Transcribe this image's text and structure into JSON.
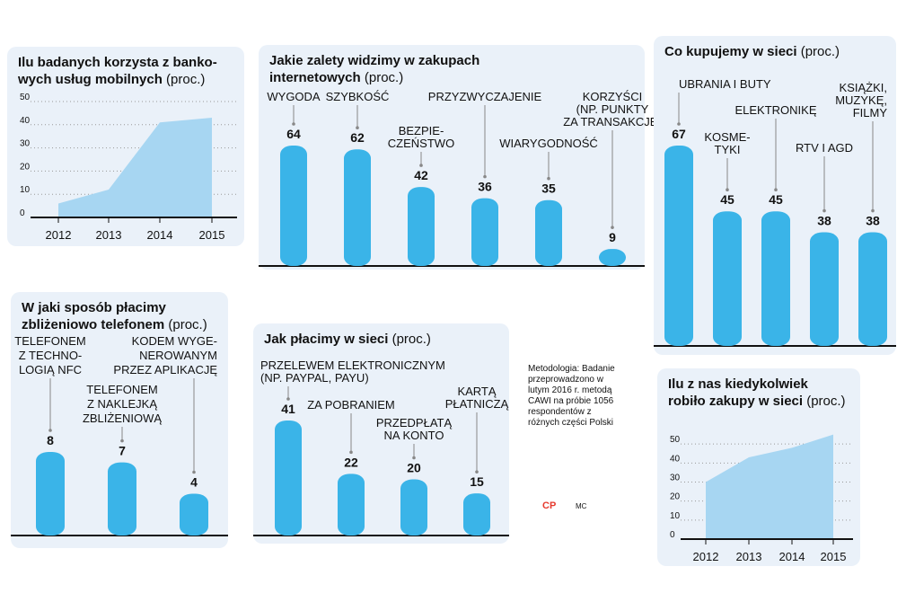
{
  "colors": {
    "bar": "#3ab4e8",
    "area": "#a7d6f2",
    "panel": "#eaf1f9",
    "axis": "#111111",
    "leader": "#888888"
  },
  "note": {
    "text": "Metodologia: Badanie przeprowadzono w lutym 2016 r. metodą CAWI na próbie 1056 respondentów z różnych części Polski"
  },
  "credits": {
    "logo": "CP",
    "initials": "MC"
  },
  "chart_data": [
    {
      "id": "mobile",
      "type": "area",
      "title": "Ilu badanych korzysta z banko-wych usług mobilnych",
      "title_lines": [
        "Ilu badanych korzysta z banko-",
        "wych usług mobilnych"
      ],
      "unit": "(proc.)",
      "x": [
        "2012",
        "2013",
        "2014",
        "2015"
      ],
      "values": [
        6,
        12,
        41,
        43
      ],
      "yticks": [
        "0",
        "10",
        "20",
        "30",
        "40",
        "50"
      ],
      "ylim": [
        0,
        50
      ]
    },
    {
      "id": "advantages",
      "type": "bar",
      "title": "Jakie zalety widzimy w zakupach internetowych",
      "title_lines": [
        "Jakie zalety widzimy w zakupach",
        "internetowych"
      ],
      "unit": "(proc.)",
      "categories": [
        "WYGODA",
        "SZYBKOŚĆ",
        "BEZPIECZEŃSTWO",
        "PRZYZWYCZAJENIE",
        "WIARYGODNOŚĆ",
        "KORZYŚCI (NP. PUNKTY ZA TRANSAKCJE)"
      ],
      "label_lines": [
        [
          "WYGODA"
        ],
        [
          "SZYBKOŚĆ"
        ],
        [
          "BEZPIE-",
          "CZEŃSTWO"
        ],
        [
          "PRZYZWYCZAJENIE"
        ],
        [
          "WIARYGODNOŚĆ"
        ],
        [
          "KORZYŚCI",
          "(NP. PUNKTY",
          "ZA TRANSAKCJE)"
        ]
      ],
      "values": [
        64,
        62,
        42,
        36,
        35,
        9
      ]
    },
    {
      "id": "buy",
      "type": "bar",
      "title": "Co kupujemy w sieci",
      "title_lines": [
        "Co kupujemy w sieci"
      ],
      "unit": "(proc.)",
      "categories": [
        "UBRANIA I BUTY",
        "KOSMETYKI",
        "ELEKTRONIKĘ",
        "RTV I AGD",
        "KSIĄŻKI, MUZYKĘ, FILMY"
      ],
      "label_lines": [
        [
          "UBRANIA I BUTY"
        ],
        [
          "KOSME-",
          "TYKI"
        ],
        [
          "ELEKTRONIKĘ"
        ],
        [
          "RTV I AGD"
        ],
        [
          "KSIĄŻKI,",
          "MUZYKĘ,",
          "FILMY"
        ]
      ],
      "values": [
        67,
        45,
        45,
        38,
        38
      ]
    },
    {
      "id": "contactless",
      "type": "bar",
      "title": "W jaki sposób płacimy zbliżeniowo telefonem",
      "title_lines": [
        "W jaki sposób płacimy",
        "zbliżeniowo telefonem"
      ],
      "unit": "(proc.)",
      "categories": [
        "TELEFONEM Z TECHNOLOGIĄ NFC",
        "TELEFONEM Z NAKLEJKĄ ZBLIŻENIOWĄ",
        "KODEM WYGENEROWANYM PRZEZ APLIKACJĘ"
      ],
      "label_lines": [
        [
          "TELEFONEM",
          "Z TECHNO-",
          "LOGIĄ NFC"
        ],
        [
          "TELEFONEM",
          "Z NAKLEJKĄ",
          "ZBLIŻENIOWĄ"
        ],
        [
          "KODEM WYGE-",
          "NEROWANYM",
          "PRZEZ APLIKACJĘ"
        ]
      ],
      "values": [
        8,
        7,
        4
      ]
    },
    {
      "id": "payment",
      "type": "bar",
      "title": "Jak płacimy w sieci",
      "title_lines": [
        "Jak płacimy w sieci"
      ],
      "unit": "(proc.)",
      "categories": [
        "PRZELEWEM ELEKTRONICZNYM (NP. PAYPAL, PAYU)",
        "ZA POBRANIEM",
        "PRZEDPŁATĄ NA KONTO",
        "KARTĄ PŁATNICZĄ"
      ],
      "label_lines": [
        [
          "PRZELEWEM ELEKTRONICZNYM",
          "(NP. PAYPAL, PAYU)"
        ],
        [
          "ZA POBRANIEM"
        ],
        [
          "PRZEDPŁATĄ",
          "NA KONTO"
        ],
        [
          "KARTĄ",
          "PŁATNICZĄ"
        ]
      ],
      "values": [
        41,
        22,
        20,
        15
      ]
    },
    {
      "id": "ever",
      "type": "area",
      "title": "Ilu z nas kiedykolwiek robiło zakupy w sieci",
      "title_lines": [
        "Ilu z nas kiedykolwiek",
        "robiło zakupy w sieci"
      ],
      "unit": "(proc.)",
      "x": [
        "2012",
        "2013",
        "2014",
        "2015"
      ],
      "values": [
        30,
        43,
        48,
        55
      ],
      "yticks": [
        "0",
        "10",
        "20",
        "30",
        "40",
        "50"
      ],
      "ylim": [
        0,
        60
      ]
    }
  ]
}
